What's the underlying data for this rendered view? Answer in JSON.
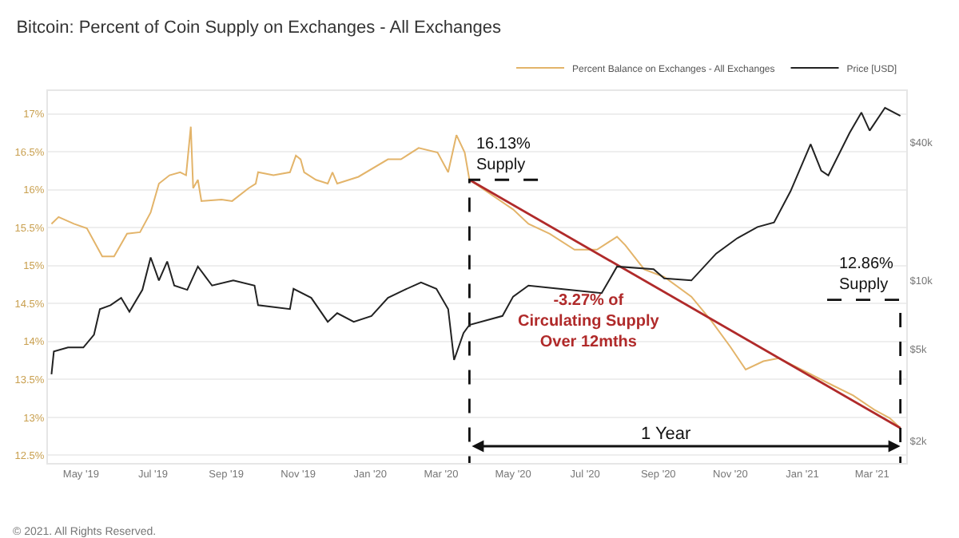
{
  "chart_data": {
    "type": "line",
    "title": "Bitcoin: Percent of Coin Supply on Exchanges - All Exchanges",
    "xlim": [
      "2019-04-03",
      "2021-03-30"
    ],
    "xticks": [
      {
        "value": "2019-05-01",
        "label": "May '19"
      },
      {
        "value": "2019-07-01",
        "label": "Jul '19"
      },
      {
        "value": "2019-09-01",
        "label": "Sep '19"
      },
      {
        "value": "2019-11-01",
        "label": "Nov '19"
      },
      {
        "value": "2020-01-01",
        "label": "Jan '20"
      },
      {
        "value": "2020-03-01",
        "label": "Mar '20"
      },
      {
        "value": "2020-05-01",
        "label": "May '20"
      },
      {
        "value": "2020-07-01",
        "label": "Jul '20"
      },
      {
        "value": "2020-09-01",
        "label": "Sep '20"
      },
      {
        "value": "2020-11-01",
        "label": "Nov '20"
      },
      {
        "value": "2021-01-01",
        "label": "Jan '21"
      },
      {
        "value": "2021-03-01",
        "label": "Mar '21"
      }
    ],
    "ylim": [
      12.4,
      17.3
    ],
    "yticks": [
      {
        "value": 12.5,
        "label": "12.5%"
      },
      {
        "value": 13,
        "label": "13%"
      },
      {
        "value": 13.5,
        "label": "13.5%"
      },
      {
        "value": 14,
        "label": "14%"
      },
      {
        "value": 14.5,
        "label": "14.5%"
      },
      {
        "value": 15,
        "label": "15%"
      },
      {
        "value": 15.5,
        "label": "15.5%"
      },
      {
        "value": 16,
        "label": "16%"
      },
      {
        "value": 16.5,
        "label": "16.5%"
      },
      {
        "value": 17,
        "label": "17%"
      }
    ],
    "y2lim": [
      1600,
      67000
    ],
    "y2ticks": [
      {
        "value": 2000,
        "label": "$2k"
      },
      {
        "value": 5000,
        "label": "$5k"
      },
      {
        "value": 10000,
        "label": "$10k"
      },
      {
        "value": 40000,
        "label": "$40k"
      }
    ],
    "log": "y2",
    "grid": "y",
    "legend": "top right",
    "marker": "none",
    "series": [
      {
        "name": "Percent Balance on Exchanges - All Exchanges",
        "color": "#e3b46a",
        "x": [
          "2019-04-06",
          "2019-04-12",
          "2019-04-25",
          "2019-05-06",
          "2019-05-19",
          "2019-05-29",
          "2019-06-09",
          "2019-06-20",
          "2019-06-29",
          "2019-07-06",
          "2019-07-15",
          "2019-07-24",
          "2019-07-29",
          "2019-08-02",
          "2019-08-04",
          "2019-08-08",
          "2019-08-11",
          "2019-08-28",
          "2019-09-06",
          "2019-09-20",
          "2019-09-26",
          "2019-09-28",
          "2019-10-11",
          "2019-10-25",
          "2019-10-30",
          "2019-11-03",
          "2019-11-06",
          "2019-11-16",
          "2019-11-26",
          "2019-11-30",
          "2019-12-04",
          "2019-12-22",
          "2020-01-16",
          "2020-01-27",
          "2020-02-11",
          "2020-02-27",
          "2020-03-07",
          "2020-03-14",
          "2020-03-21",
          "2020-03-25",
          "2020-05-01",
          "2020-05-14",
          "2020-06-01",
          "2020-06-22",
          "2020-07-11",
          "2020-07-28",
          "2020-08-04",
          "2020-08-20",
          "2020-09-06",
          "2020-09-29",
          "2020-10-16",
          "2020-11-01",
          "2020-11-14",
          "2020-11-29",
          "2020-12-12",
          "2021-01-08",
          "2021-01-27",
          "2021-02-13",
          "2021-03-03",
          "2021-03-16",
          "2021-03-25"
        ],
        "values": [
          15.55,
          15.64,
          15.55,
          15.49,
          15.12,
          15.12,
          15.42,
          15.44,
          15.7,
          16.08,
          16.19,
          16.23,
          16.19,
          16.83,
          16.02,
          16.13,
          15.85,
          15.87,
          15.85,
          16.02,
          16.08,
          16.23,
          16.19,
          16.23,
          16.45,
          16.4,
          16.23,
          16.13,
          16.08,
          16.23,
          16.08,
          16.17,
          16.4,
          16.4,
          16.55,
          16.49,
          16.23,
          16.72,
          16.49,
          16.13,
          15.74,
          15.55,
          15.42,
          15.21,
          15.21,
          15.38,
          15.27,
          14.95,
          14.85,
          14.59,
          14.27,
          13.93,
          13.63,
          13.74,
          13.78,
          13.57,
          13.42,
          13.29,
          13.1,
          12.99,
          12.86
        ]
      },
      {
        "name": "Price [USD]",
        "color": "#222222",
        "axis": "y2",
        "x": [
          "2019-04-06",
          "2019-04-08",
          "2019-04-20",
          "2019-05-03",
          "2019-05-12",
          "2019-05-17",
          "2019-05-26",
          "2019-06-04",
          "2019-06-11",
          "2019-06-22",
          "2019-06-29",
          "2019-07-06",
          "2019-07-13",
          "2019-07-19",
          "2019-07-30",
          "2019-08-08",
          "2019-08-20",
          "2019-09-07",
          "2019-09-25",
          "2019-09-28",
          "2019-10-25",
          "2019-10-28",
          "2019-11-12",
          "2019-11-26",
          "2019-12-04",
          "2019-12-18",
          "2020-01-02",
          "2020-01-16",
          "2020-01-30",
          "2020-02-13",
          "2020-02-26",
          "2020-03-07",
          "2020-03-12",
          "2020-03-20",
          "2020-03-25",
          "2020-04-22",
          "2020-05-01",
          "2020-05-14",
          "2020-06-09",
          "2020-07-15",
          "2020-07-28",
          "2020-08-28",
          "2020-09-06",
          "2020-09-29",
          "2020-10-20",
          "2020-11-07",
          "2020-11-24",
          "2020-12-08",
          "2020-12-22",
          "2021-01-08",
          "2021-01-17",
          "2021-01-23",
          "2021-02-10",
          "2021-02-20",
          "2021-02-27",
          "2021-03-12",
          "2021-03-25"
        ],
        "values": [
          3900,
          4900,
          5100,
          5100,
          5800,
          7500,
          7800,
          8400,
          7300,
          9100,
          12600,
          10000,
          12100,
          9500,
          9100,
          11500,
          9500,
          10000,
          9500,
          7800,
          7500,
          9200,
          8400,
          6600,
          7200,
          6600,
          7000,
          8400,
          9100,
          9800,
          9200,
          7500,
          4500,
          5900,
          6400,
          7000,
          8500,
          9500,
          9200,
          8800,
          11500,
          11200,
          10200,
          10000,
          13100,
          15300,
          17100,
          17900,
          24500,
          39300,
          30100,
          28700,
          44000,
          54000,
          45000,
          56600,
          52200
        ]
      },
      {
        "type": "line",
        "color": "#b02a2a",
        "x": [
          "2020-03-25",
          "2021-03-25"
        ],
        "values": [
          16.13,
          12.86
        ]
      },
      {
        "type": "line",
        "color": "#111111",
        "line_style": "dashed",
        "x": [
          "2020-05-22",
          "2020-03-25",
          "2020-03-25"
        ],
        "values": [
          16.13,
          16.13,
          12.4
        ]
      },
      {
        "type": "line",
        "color": "#111111",
        "line_style": "dashed",
        "x": [
          "2021-01-22",
          "2021-03-25",
          "2021-03-25"
        ],
        "values": [
          14.55,
          14.55,
          12.4
        ]
      }
    ],
    "annotations": [
      "16.13%\nSupply",
      "12.86%\nSupply",
      "-3.27% of\nCirculating Supply\nOver 12mths",
      "1 Year",
      "© 2021. All Rights Reserved."
    ]
  }
}
